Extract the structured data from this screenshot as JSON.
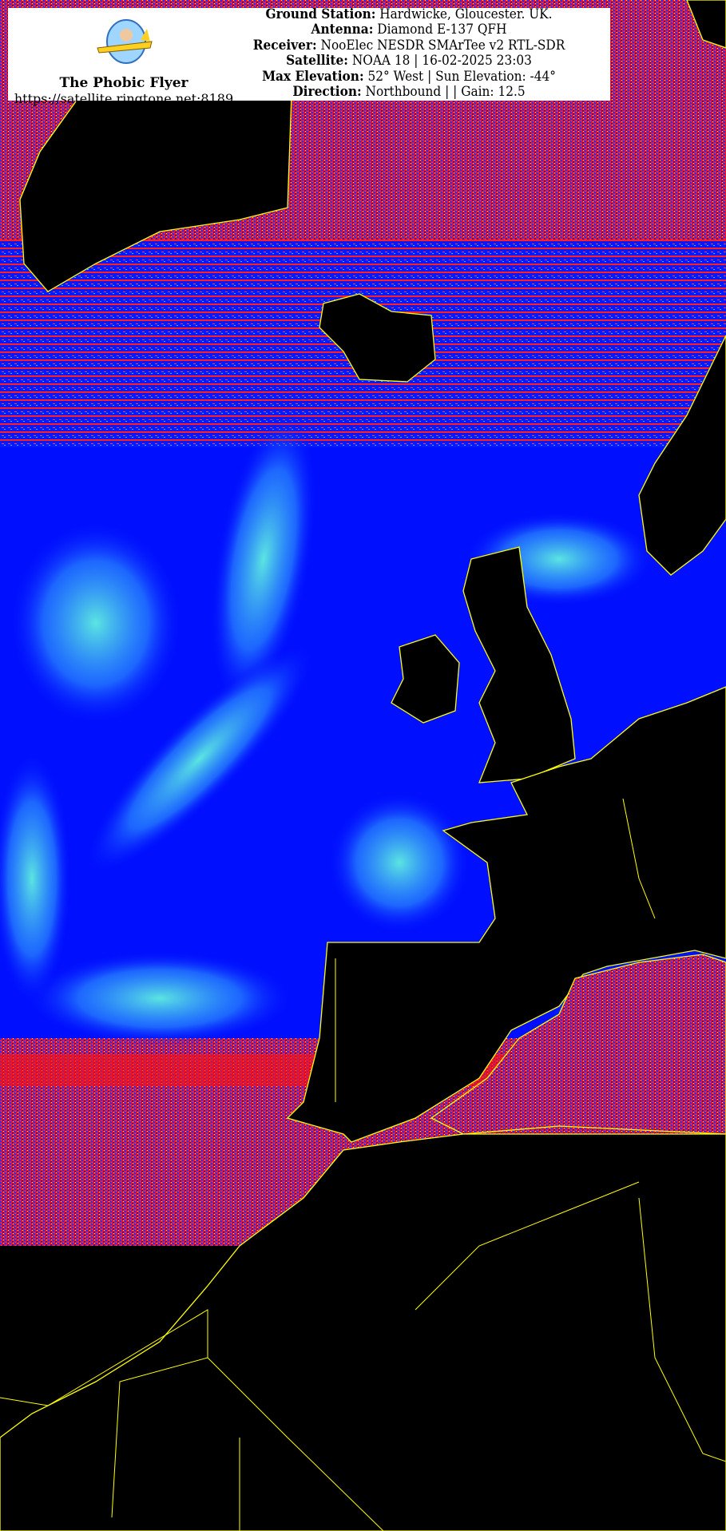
{
  "header": {
    "brand": "The Phobic Flyer",
    "url": "https://satellite.ringtone.net:8189",
    "logo_icon": "phobic-flyer-plane-logo",
    "info": [
      {
        "label": "Ground Station:",
        "value": " Hardwicke, Gloucester. UK."
      },
      {
        "label": "Antenna:",
        "value": " Diamond E-137 QFH"
      },
      {
        "label": "Receiver:",
        "value": " NooElec NESDR SMArTee v2 RTL-SDR"
      },
      {
        "label": "Satellite:",
        "value": " NOAA 18 | 16-02-2025 23:03"
      },
      {
        "label": "Max Elevation:",
        "value": " 52° West | Sun Elevation: -44°"
      },
      {
        "label": "Direction:",
        "value": " Northbound | | Gain: 12.5"
      }
    ]
  },
  "colors": {
    "land": "#000000",
    "borders": "#ffff00",
    "sea": "#0000ff",
    "cloud": "#40e0d0",
    "noise_red": "#ff0000"
  }
}
